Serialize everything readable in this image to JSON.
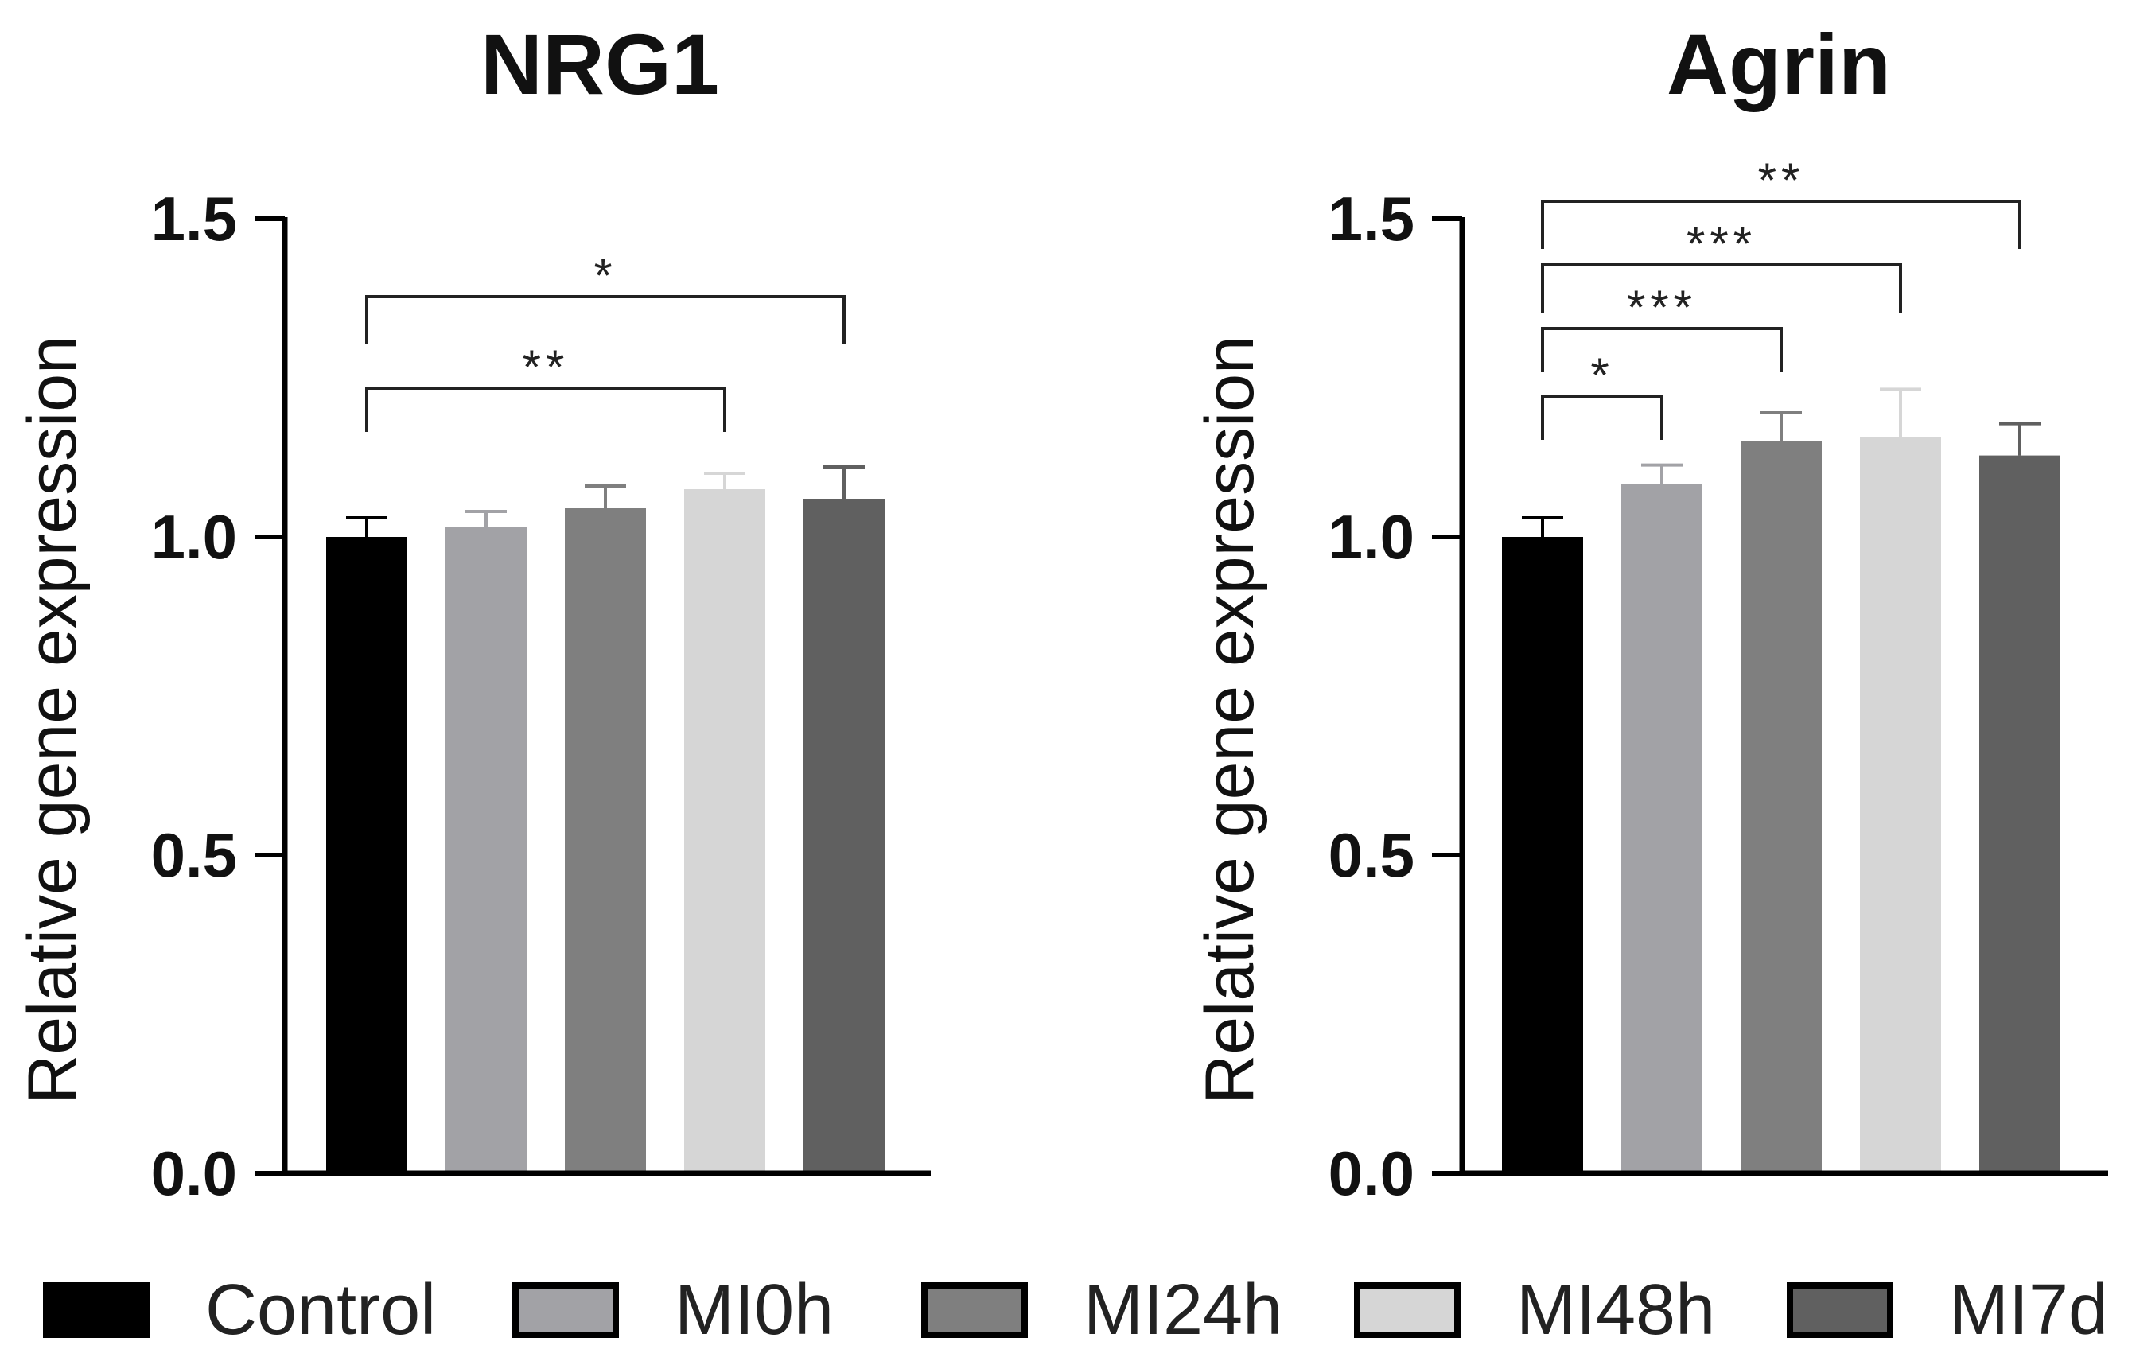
{
  "colors": {
    "axis": "#000000",
    "Control": "#000000",
    "MI0h": "#a2a2a6",
    "MI24h": "#7f7f7f",
    "MI48h": "#d6d6d6",
    "MI7d": "#606060"
  },
  "legend": {
    "items": [
      "Control",
      "MI0h",
      "MI24h",
      "MI48h",
      "MI7d"
    ]
  },
  "chart_data": [
    {
      "type": "bar",
      "title": "NRG1",
      "xlabel": "",
      "ylabel": "Relative gene expression",
      "ylim": [
        0,
        1.5
      ],
      "yticks": [
        "0.0",
        "0.5",
        "1.0",
        "1.5"
      ],
      "categories": [
        "Control",
        "MI0h",
        "MI24h",
        "MI48h",
        "MI7d"
      ],
      "values": [
        1.0,
        1.015,
        1.045,
        1.075,
        1.06
      ],
      "errors": [
        0.03,
        0.025,
        0.035,
        0.025,
        0.05
      ],
      "significance": [
        {
          "from": 0,
          "to": 3,
          "label": "**"
        },
        {
          "from": 0,
          "to": 4,
          "label": "*"
        }
      ]
    },
    {
      "type": "bar",
      "title": "Agrin",
      "xlabel": "",
      "ylabel": "Relative gene expression",
      "ylim": [
        0,
        1.5
      ],
      "yticks": [
        "0.0",
        "0.5",
        "1.0",
        "1.5"
      ],
      "categories": [
        "Control",
        "MI0h",
        "MI24h",
        "MI48h",
        "MI7d"
      ],
      "values": [
        1.0,
        1.083,
        1.15,
        1.157,
        1.128
      ],
      "errors": [
        0.03,
        0.03,
        0.045,
        0.075,
        0.05
      ],
      "significance": [
        {
          "from": 0,
          "to": 1,
          "label": "*"
        },
        {
          "from": 0,
          "to": 2,
          "label": "***"
        },
        {
          "from": 0,
          "to": 3,
          "label": "***"
        },
        {
          "from": 0,
          "to": 4,
          "label": "**"
        }
      ]
    }
  ]
}
